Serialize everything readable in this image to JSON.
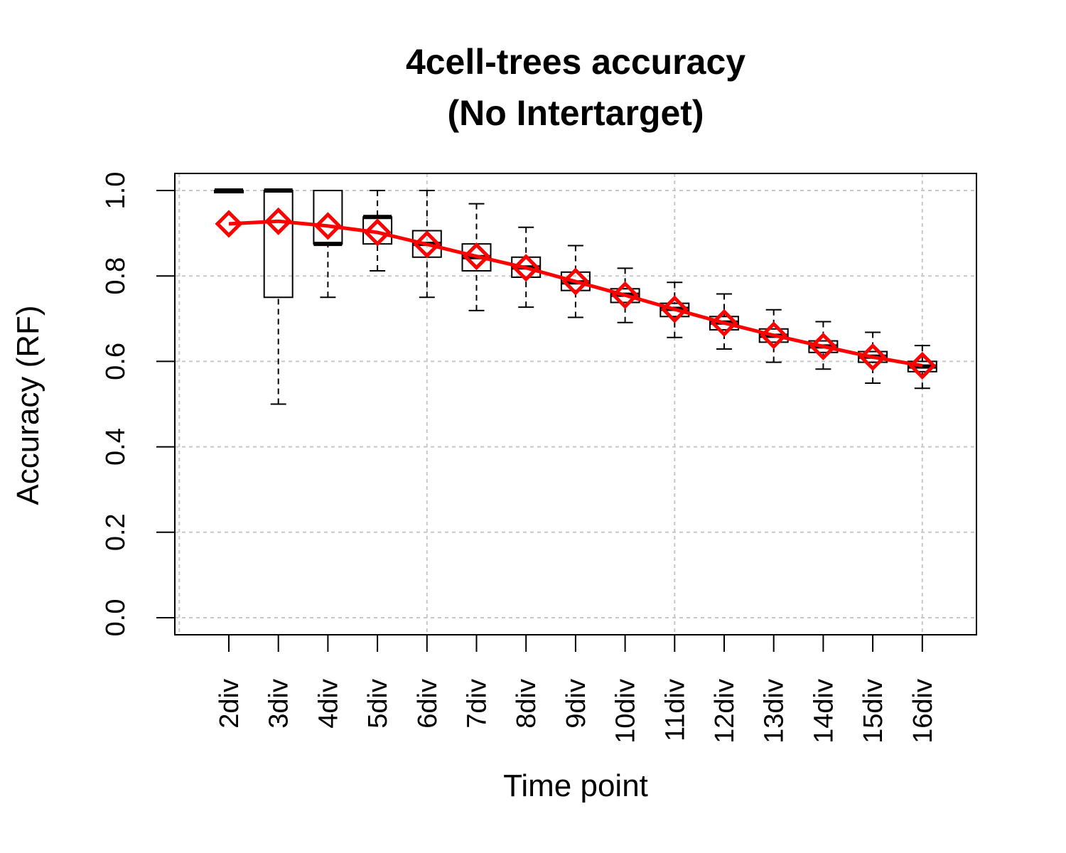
{
  "chart_data": {
    "type": "box",
    "title": "4cell-trees accuracy",
    "subtitle": "(No Intertarget)",
    "x_label": "Time point",
    "y_label": "Accuracy (RF)",
    "categories": [
      "2div",
      "3div",
      "4div",
      "5div",
      "6div",
      "7div",
      "8div",
      "9div",
      "10div",
      "11div",
      "12div",
      "13div",
      "14div",
      "15div",
      "16div"
    ],
    "whisker_low": [
      1,
      0.5,
      0.75,
      0.812,
      0.75,
      0.719,
      0.727,
      0.703,
      0.691,
      0.656,
      0.629,
      0.598,
      0.582,
      0.549,
      0.537
    ],
    "q1": [
      0.995,
      0.75,
      0.875,
      0.875,
      0.844,
      0.812,
      0.797,
      0.766,
      0.738,
      0.705,
      0.674,
      0.645,
      0.621,
      0.598,
      0.576
    ],
    "median": [
      1,
      1,
      0.875,
      0.938,
      0.875,
      0.844,
      0.82,
      0.785,
      0.756,
      0.723,
      0.691,
      0.66,
      0.635,
      0.611,
      0.588
    ],
    "q3": [
      1,
      1,
      1,
      0.938,
      0.906,
      0.875,
      0.844,
      0.809,
      0.77,
      0.736,
      0.705,
      0.676,
      0.648,
      0.623,
      0.6
    ],
    "whisker_high": [
      1,
      1,
      1,
      1,
      1,
      0.969,
      0.914,
      0.871,
      0.818,
      0.785,
      0.758,
      0.721,
      0.693,
      0.668,
      0.637
    ],
    "mean": {
      "color": "#ff0000",
      "values": [
        0.922,
        0.928,
        0.917,
        0.902,
        0.874,
        0.846,
        0.819,
        0.787,
        0.755,
        0.722,
        0.69,
        0.661,
        0.635,
        0.61,
        0.59
      ]
    },
    "ylim": [
      -0.04,
      1.04
    ],
    "yticks": [
      {
        "value": 0,
        "label": "0.0"
      },
      0.2,
      0.4,
      0.6,
      0.8,
      {
        "value": 1,
        "label": "1.0"
      }
    ],
    "grid": true
  }
}
